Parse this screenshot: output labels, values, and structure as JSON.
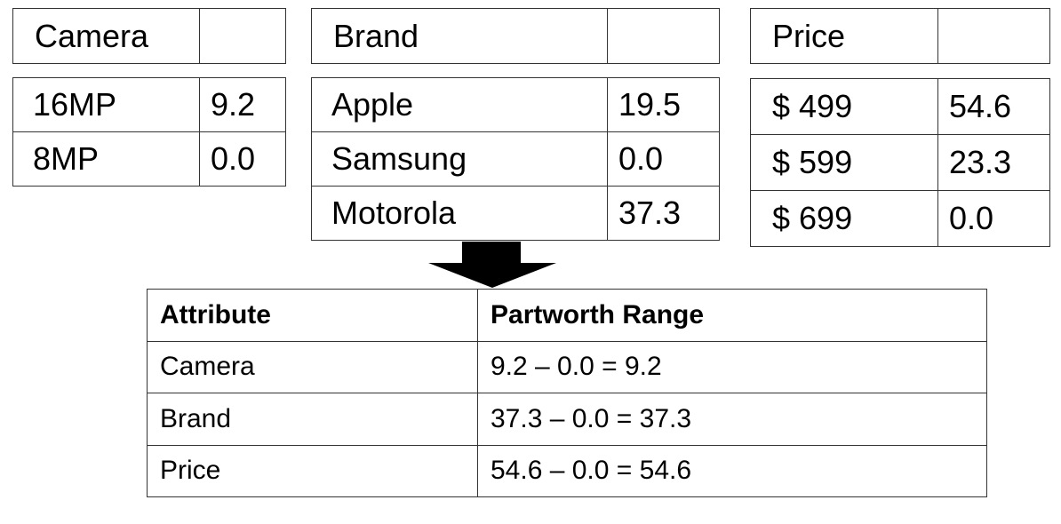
{
  "camera": {
    "header": "Camera",
    "rows": [
      {
        "level": "16MP",
        "value": "9.2"
      },
      {
        "level": "8MP",
        "value": "0.0"
      }
    ]
  },
  "brand": {
    "header": "Brand",
    "rows": [
      {
        "level": "Apple",
        "value": "19.5"
      },
      {
        "level": "Samsung",
        "value": "0.0"
      },
      {
        "level": "Motorola",
        "value": "37.3"
      }
    ]
  },
  "price": {
    "header": "Price",
    "rows": [
      {
        "level": "$ 499",
        "value": "54.6"
      },
      {
        "level": "$ 599",
        "value": "23.3"
      },
      {
        "level": "$ 699",
        "value": "0.0"
      }
    ]
  },
  "summary": {
    "headers": [
      "Attribute",
      "Partworth Range"
    ],
    "rows": [
      {
        "attribute": "Camera",
        "range": "9.2 – 0.0 = 9.2"
      },
      {
        "attribute": "Brand",
        "range": "37.3 – 0.0 = 37.3"
      },
      {
        "attribute": "Price",
        "range": "54.6 – 0.0 = 54.6"
      }
    ]
  },
  "colors": {
    "border": "#333333",
    "arrow": "#000000",
    "background": "#ffffff"
  }
}
